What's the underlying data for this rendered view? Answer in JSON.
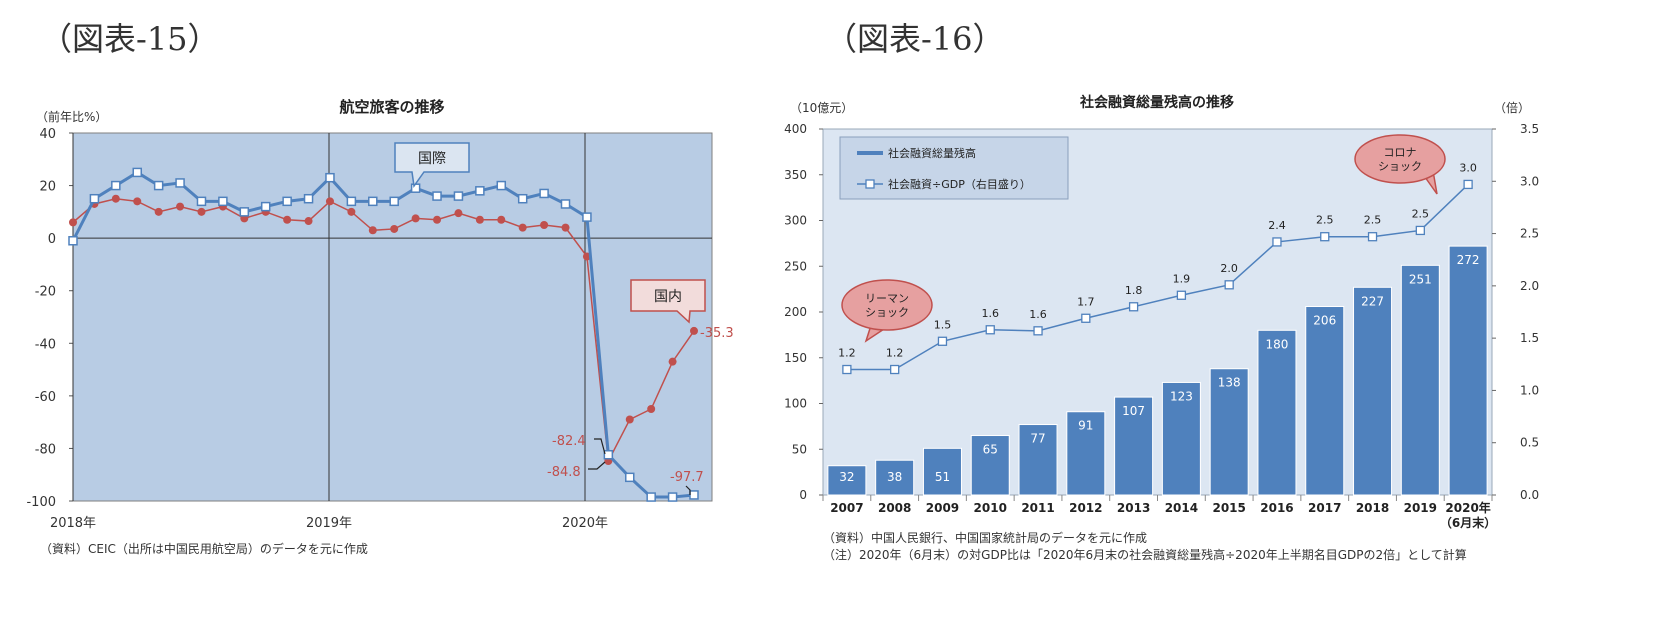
{
  "headings": {
    "left": "（図表-15）",
    "right": "（図表-16）"
  },
  "chart_data": [
    {
      "type": "line",
      "title": "航空旅客の推移",
      "ylabel": "（前年比%）",
      "ylim": [
        -100,
        40
      ],
      "yticks": [
        40,
        20,
        0,
        -20,
        -40,
        -60,
        -80,
        -100
      ],
      "xticks": [
        "2018年",
        "2019年",
        "2020年"
      ],
      "source": "（資料）CEIC（出所は中国民用航空局）のデータを元に作成",
      "series": [
        {
          "name": "国際",
          "color": "#4f81bd",
          "values": [
            -1,
            15,
            20,
            25,
            20,
            21,
            14,
            14,
            10,
            12,
            14,
            15,
            23,
            14,
            14,
            14,
            19,
            16,
            16,
            18,
            20,
            15,
            17,
            13,
            8,
            -82.4,
            -91,
            -98.5,
            -98.5,
            -97.7
          ]
        },
        {
          "name": "国内",
          "color": "#c0504d",
          "values": [
            6,
            13,
            15,
            14,
            10,
            12,
            10,
            12,
            7.5,
            10,
            7,
            6.5,
            14,
            10,
            3,
            3.5,
            7.5,
            7,
            9.5,
            7,
            7,
            4,
            5,
            4,
            -7,
            -84.8,
            -69,
            -65,
            -47,
            -35.3
          ]
        }
      ],
      "annotations": [
        {
          "label": "-82.4",
          "series": "国際"
        },
        {
          "label": "-84.8",
          "series": "国内"
        },
        {
          "label": "-97.7",
          "series": "国際"
        },
        {
          "label": "-35.3",
          "series": "国内"
        }
      ]
    },
    {
      "type": "bar+line",
      "title": "社会融資総量残高の推移",
      "ylabel_left": "（10億元）",
      "ylabel_right": "（倍）",
      "ylim_left": [
        0,
        400
      ],
      "ylim_right": [
        0,
        3.5
      ],
      "yticks_left": [
        "0",
        "50",
        "100",
        "150",
        "200",
        "250",
        "300",
        "350",
        "400"
      ],
      "yticks_right": [
        "0.0",
        "0.5",
        "1.0",
        "1.5",
        "2.0",
        "2.5",
        "3.0",
        "3.5"
      ],
      "categories": [
        "2007",
        "2008",
        "2009",
        "2010",
        "2011",
        "2012",
        "2013",
        "2014",
        "2015",
        "2016",
        "2017",
        "2018",
        "2019",
        "2020年"
      ],
      "last_category_sub": "（6月末）",
      "bar_series": {
        "name": "社会融資総量残高",
        "color": "#4f81bd",
        "values": [
          32,
          38,
          51,
          65,
          77,
          91,
          107,
          123,
          138,
          180,
          206,
          227,
          251,
          272
        ]
      },
      "line_series": {
        "name": "社会融資÷GDP（右目盛り）",
        "color": "#4f81bd",
        "values": [
          1.2,
          1.2,
          1.5,
          1.6,
          1.6,
          1.7,
          1.8,
          1.9,
          2.0,
          2.4,
          2.5,
          2.5,
          2.5,
          3.0
        ],
        "plot_values": [
          1.2,
          1.2,
          1.47,
          1.58,
          1.57,
          1.69,
          1.8,
          1.91,
          2.01,
          2.42,
          2.47,
          2.47,
          2.53,
          2.97
        ]
      },
      "callouts": [
        {
          "lines": [
            "リーマン",
            "ショック"
          ]
        },
        {
          "lines": [
            "コロナ",
            "ショック"
          ]
        }
      ],
      "notes": [
        "（資料）中国人民銀行、中国国家統計局のデータを元に作成",
        "（注）2020年（6月末）の対GDP比は「2020年6月末の社会融資総量残高÷2020年上半期名目GDPの2倍」として計算"
      ]
    }
  ]
}
